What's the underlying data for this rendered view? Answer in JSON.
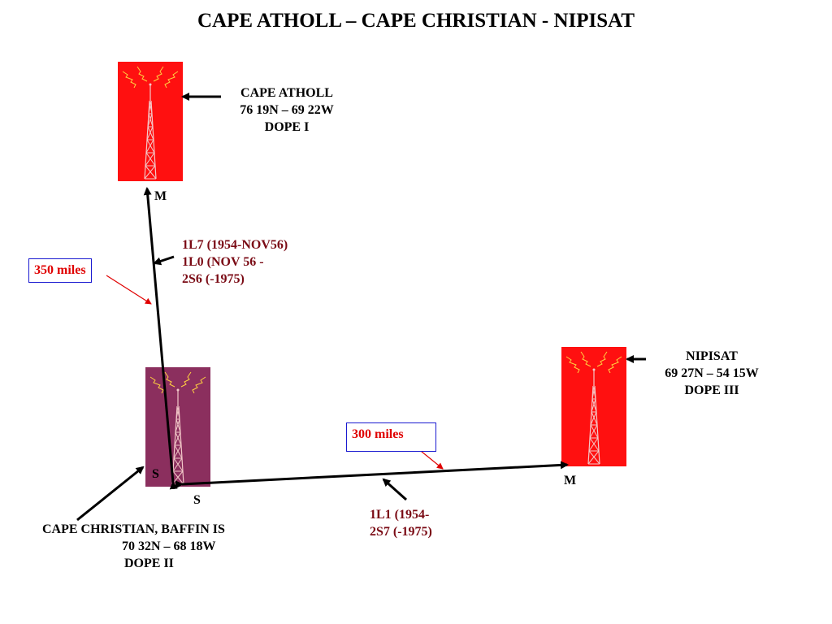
{
  "title": "CAPE ATHOLL – CAPE CHRISTIAN - NIPISAT",
  "stations": {
    "atholl": {
      "lines": [
        "CAPE ATHOLL",
        "76 19N – 69 22W",
        "DOPE I"
      ],
      "role": "M",
      "color": "#ff1010"
    },
    "christian": {
      "lines": [
        "CAPE CHRISTIAN, BAFFIN IS",
        "70 32N – 68 18W",
        "DOPE II"
      ],
      "role_left": "S",
      "role_bottom": "S",
      "color": "#8b2f5e"
    },
    "nipisat": {
      "lines": [
        "NIPISAT",
        "69 27N – 54 15W",
        "DOPE III"
      ],
      "role": "M",
      "color": "#ff1010"
    }
  },
  "links": {
    "atholl_christian": {
      "distance": "350 miles",
      "callsigns": [
        "1L7 (1954-NOV56)",
        "1L0 (NOV 56 -",
        "2S6 (-1975)"
      ]
    },
    "christian_nipisat": {
      "distance": "300 miles",
      "callsigns": [
        "1L1 (1954-",
        "2S7 (-1975)"
      ]
    }
  },
  "colors": {
    "link_line": "#000000",
    "callsign_text": "#7a0a14",
    "distance_text": "#e00000",
    "distance_border": "#1a1ad0",
    "pointer": "#e00000",
    "spark": "#ffd040"
  }
}
